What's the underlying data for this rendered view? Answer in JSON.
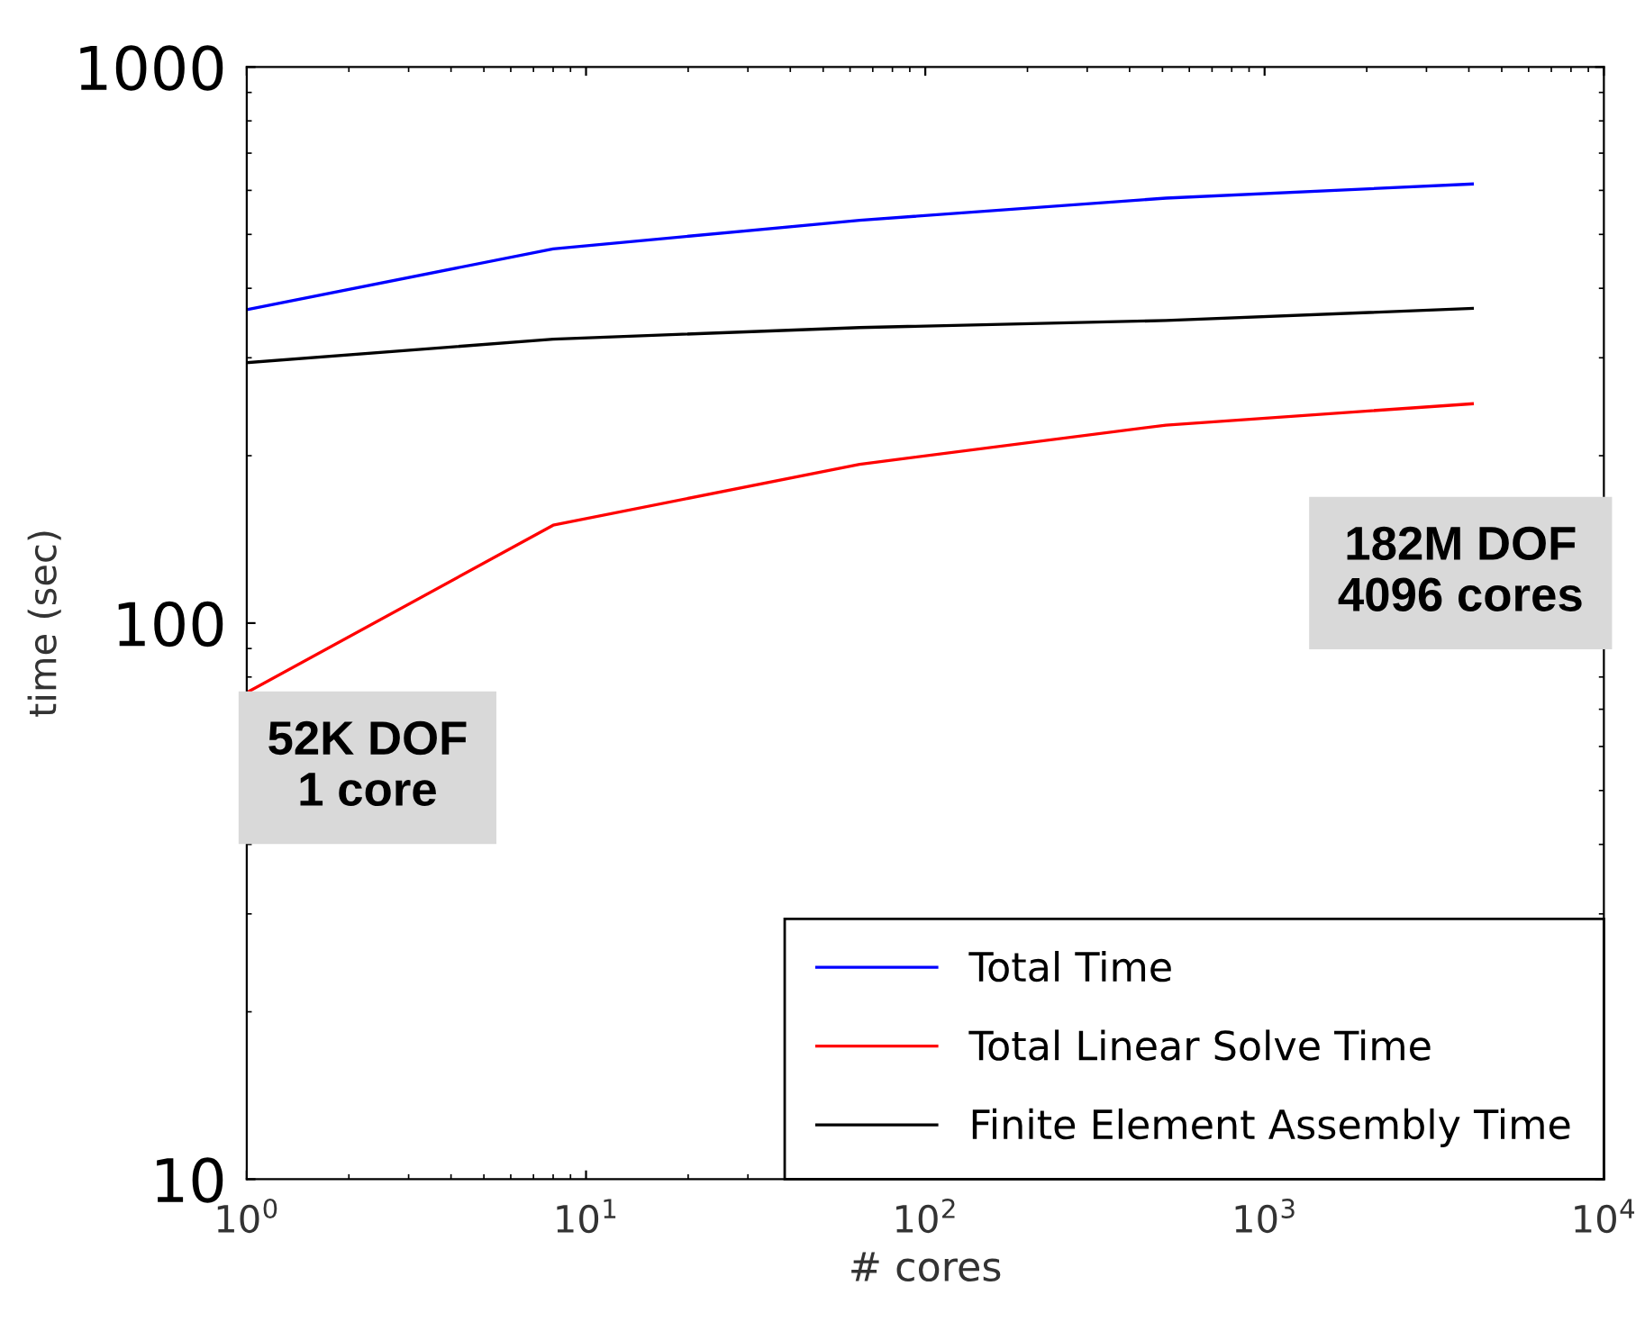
{
  "chart_data": {
    "type": "line",
    "xlabel": "# cores",
    "ylabel": "time (sec)",
    "x": [
      1,
      8,
      64,
      512,
      4096
    ],
    "series": [
      {
        "name": "Total Time",
        "color": "#0000ff",
        "values": [
          366,
          471,
          530,
          581,
          616
        ]
      },
      {
        "name": "Total Linear Solve Time",
        "color": "#ff0000",
        "values": [
          75,
          150,
          193,
          227,
          248
        ]
      },
      {
        "name": "Finite Element Assembly Time",
        "color": "#000000",
        "values": [
          294,
          324,
          340,
          350,
          368
        ]
      }
    ],
    "log": "xy",
    "xlim": [
      1,
      10000
    ],
    "ylim": [
      10,
      1000
    ],
    "xticks": [
      {
        "value": 1,
        "label": "10$^{0}$"
      },
      {
        "value": 10,
        "label": "10$^{1}$"
      },
      {
        "value": 100,
        "label": "10$^{2}$"
      },
      {
        "value": 1000,
        "label": "10$^{3}$"
      },
      {
        "value": 10000,
        "label": "10$^{4}$"
      }
    ],
    "yticks": [
      10,
      100,
      1000
    ],
    "annotations": [
      "52K DOF\n1 core",
      "182M DOF\n4096 cores"
    ],
    "legend": "bottom right",
    "grid": false,
    "marker": "none",
    "line_style": "solid"
  }
}
